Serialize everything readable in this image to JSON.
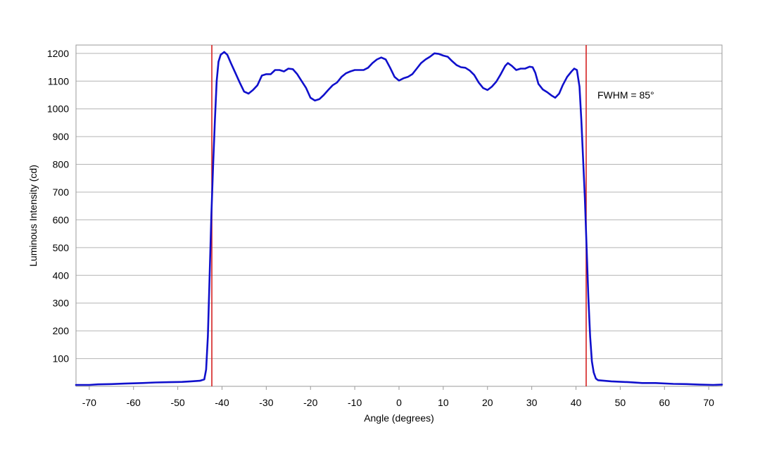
{
  "chart_data": {
    "type": "line",
    "xlabel": "Angle (degrees)",
    "ylabel": "Luminous Intensity (cd)",
    "xlim": [
      -73,
      73
    ],
    "ylim": [
      0,
      1230
    ],
    "xticks": [
      -70,
      -60,
      -50,
      -40,
      -30,
      -20,
      -10,
      0,
      10,
      20,
      30,
      40,
      50,
      60,
      70
    ],
    "yticks": [
      100,
      200,
      300,
      400,
      500,
      600,
      700,
      800,
      900,
      1000,
      1100,
      1200
    ],
    "grid": "horizontal",
    "series": [
      {
        "color": "#1010cc",
        "points": [
          [
            -73,
            5
          ],
          [
            -70,
            5
          ],
          [
            -68,
            7
          ],
          [
            -65,
            8
          ],
          [
            -62,
            10
          ],
          [
            -58,
            12
          ],
          [
            -55,
            14
          ],
          [
            -52,
            15
          ],
          [
            -49,
            16
          ],
          [
            -47,
            18
          ],
          [
            -45,
            20
          ],
          [
            -44,
            25
          ],
          [
            -43.6,
            60
          ],
          [
            -43.2,
            180
          ],
          [
            -42.8,
            400
          ],
          [
            -42.4,
            620
          ],
          [
            -42,
            800
          ],
          [
            -41.6,
            960
          ],
          [
            -41.2,
            1100
          ],
          [
            -40.8,
            1170
          ],
          [
            -40.3,
            1195
          ],
          [
            -39.5,
            1205
          ],
          [
            -38.8,
            1195
          ],
          [
            -38,
            1165
          ],
          [
            -37,
            1130
          ],
          [
            -36,
            1095
          ],
          [
            -35,
            1062
          ],
          [
            -34,
            1055
          ],
          [
            -33,
            1068
          ],
          [
            -32,
            1085
          ],
          [
            -31,
            1120
          ],
          [
            -30,
            1125
          ],
          [
            -29,
            1125
          ],
          [
            -28,
            1140
          ],
          [
            -27,
            1140
          ],
          [
            -26,
            1135
          ],
          [
            -25,
            1145
          ],
          [
            -24,
            1143
          ],
          [
            -23,
            1125
          ],
          [
            -22,
            1100
          ],
          [
            -21,
            1075
          ],
          [
            -20,
            1040
          ],
          [
            -19,
            1030
          ],
          [
            -18,
            1035
          ],
          [
            -17,
            1050
          ],
          [
            -16,
            1068
          ],
          [
            -15,
            1085
          ],
          [
            -14,
            1095
          ],
          [
            -13,
            1115
          ],
          [
            -12,
            1128
          ],
          [
            -11,
            1135
          ],
          [
            -10,
            1140
          ],
          [
            -9,
            1140
          ],
          [
            -8,
            1140
          ],
          [
            -7,
            1148
          ],
          [
            -6,
            1165
          ],
          [
            -5,
            1178
          ],
          [
            -4,
            1185
          ],
          [
            -3,
            1178
          ],
          [
            -2,
            1148
          ],
          [
            -1,
            1115
          ],
          [
            0,
            1102
          ],
          [
            1,
            1110
          ],
          [
            2,
            1115
          ],
          [
            3,
            1125
          ],
          [
            4,
            1145
          ],
          [
            5,
            1165
          ],
          [
            6,
            1178
          ],
          [
            7,
            1188
          ],
          [
            8,
            1200
          ],
          [
            9,
            1198
          ],
          [
            10,
            1192
          ],
          [
            11,
            1188
          ],
          [
            12,
            1172
          ],
          [
            13,
            1158
          ],
          [
            14,
            1150
          ],
          [
            15,
            1148
          ],
          [
            16,
            1138
          ],
          [
            17,
            1122
          ],
          [
            18,
            1095
          ],
          [
            19,
            1075
          ],
          [
            20,
            1068
          ],
          [
            21,
            1080
          ],
          [
            22,
            1098
          ],
          [
            23,
            1125
          ],
          [
            24,
            1155
          ],
          [
            24.6,
            1165
          ],
          [
            25.5,
            1155
          ],
          [
            26.5,
            1140
          ],
          [
            27.5,
            1145
          ],
          [
            28.5,
            1145
          ],
          [
            29.5,
            1152
          ],
          [
            30.2,
            1150
          ],
          [
            30.8,
            1130
          ],
          [
            31.5,
            1090
          ],
          [
            32.5,
            1070
          ],
          [
            33.5,
            1060
          ],
          [
            34.5,
            1048
          ],
          [
            35.3,
            1040
          ],
          [
            36.2,
            1055
          ],
          [
            37,
            1085
          ],
          [
            38,
            1115
          ],
          [
            39,
            1135
          ],
          [
            39.6,
            1145
          ],
          [
            40.2,
            1140
          ],
          [
            40.8,
            1080
          ],
          [
            41.2,
            960
          ],
          [
            41.6,
            820
          ],
          [
            42,
            680
          ],
          [
            42.4,
            500
          ],
          [
            42.8,
            320
          ],
          [
            43.2,
            180
          ],
          [
            43.6,
            90
          ],
          [
            44,
            50
          ],
          [
            44.5,
            28
          ],
          [
            45,
            22
          ],
          [
            48,
            18
          ],
          [
            52,
            15
          ],
          [
            55,
            12
          ],
          [
            58,
            12
          ],
          [
            62,
            9
          ],
          [
            65,
            8
          ],
          [
            68,
            6
          ],
          [
            71,
            5
          ],
          [
            73,
            6
          ]
        ]
      }
    ],
    "markers": [
      {
        "x": -42.3,
        "color": "#d42020"
      },
      {
        "x": 42.3,
        "color": "#d42020"
      }
    ],
    "annotation": "FWHM = 85°"
  }
}
